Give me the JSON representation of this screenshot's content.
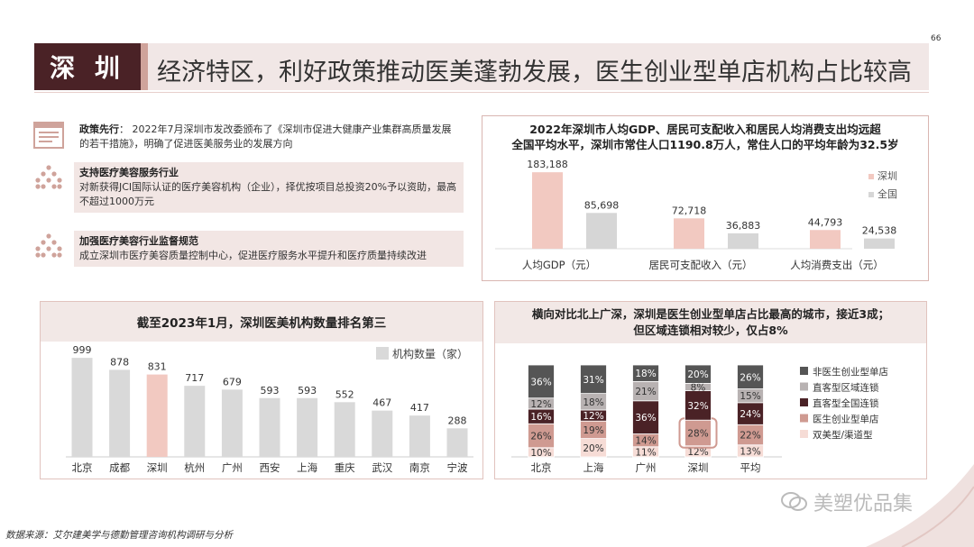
{
  "page_number": "66",
  "header": {
    "badge": "深 圳",
    "title": "经济特区，利好政策推动医美蓬勃发展，医生创业型单店机构占比较高"
  },
  "policies": [
    {
      "icon": "document-icon",
      "heading": "政策先行",
      "sep": "：",
      "text": "2022年7月深圳市发改委颁布了《深圳市促进大健康产业集群高质量发展的若干措施》，明确了促进医美服务业的发展方向"
    },
    {
      "icon": "dot-triangle-icon",
      "heading": "支持医疗美容服务行业",
      "sep": "",
      "text": "对新获得JCI国际认证的医疗美容机构（企业），择优按项目总投资20%予以资助，最高不超过1000万元"
    },
    {
      "icon": "dot-triangle-icon",
      "heading": "加强医疗美容行业监督规范",
      "sep": "",
      "text": "成立深圳市医疗美容质量控制中心，促进医疗服务水平提升和医疗质量持续改进"
    }
  ],
  "colors": {
    "dark": "#4a2226",
    "pink": "#f2c9c1",
    "grey": "#d6d6d6",
    "rose": "#cfa39b"
  },
  "chart_data": [
    {
      "type": "bar",
      "title": "2022年深圳市人均GDP、居民可支配收入和居民人均消费支出均远超全国平均水平，深圳市常住人口1190.8万人，常住人口的平均年龄为32.5岁",
      "title_lines": [
        "2022年深圳市人均GDP、居民可支配收入和居民人均消费支出均远超",
        "全国平均水平，深圳市常住人口1190.8万人，常住人口的平均年龄为32.5岁"
      ],
      "categories": [
        "人均GDP（元）",
        "居民可支配收入（元）",
        "人均消费支出（元）"
      ],
      "series": [
        {
          "name": "深圳",
          "color": "#f2c9c1",
          "values": [
            183188,
            72718,
            44793
          ],
          "labels": [
            "183,188",
            "72,718",
            "44,793"
          ]
        },
        {
          "name": "全国",
          "color": "#d6d6d6",
          "values": [
            85698,
            36883,
            24538
          ],
          "labels": [
            "85,698",
            "36,883",
            "24,538"
          ]
        }
      ],
      "legend": "right",
      "ylim": [
        0,
        190000
      ]
    },
    {
      "type": "bar",
      "title": "截至2023年1月，深圳医美机构数量排名第三",
      "categories": [
        "北京",
        "成都",
        "深圳",
        "杭州",
        "广州",
        "西安",
        "上海",
        "重庆",
        "武汉",
        "南京",
        "宁波"
      ],
      "series": [
        {
          "name": "机构数量（家）",
          "values": [
            999,
            878,
            831,
            717,
            679,
            593,
            593,
            552,
            467,
            417,
            288
          ]
        }
      ],
      "highlight": "深圳",
      "legend": "top-right",
      "ylim": [
        0,
        1000
      ]
    },
    {
      "type": "bar",
      "stacked": true,
      "title": "横向对比北上广深，深圳是医生创业型单店占比最高的城市，接近3成；但区域连锁相对较少，仅占8%",
      "title_lines": [
        "横向对比北上广深，深圳是医生创业型单店占比最高的城市，接近3成；",
        "但区域连锁相对较少，仅占8%"
      ],
      "categories": [
        "北京",
        "上海",
        "广州",
        "深圳",
        "平均"
      ],
      "series": [
        {
          "name": "双美型/渠道型",
          "color": "#f6dcd6",
          "values": [
            10,
            20,
            11,
            12,
            13
          ]
        },
        {
          "name": "医生创业型单店",
          "color": "#cf9a91",
          "values": [
            26,
            19,
            14,
            28,
            22
          ]
        },
        {
          "name": "直客型全国连锁",
          "color": "#4a2226",
          "values": [
            16,
            12,
            36,
            32,
            24
          ]
        },
        {
          "name": "直客型区域连锁",
          "color": "#b8b2b2",
          "values": [
            12,
            18,
            21,
            8,
            15
          ]
        },
        {
          "name": "非医生创业型单店",
          "color": "#555555",
          "values": [
            36,
            31,
            18,
            20,
            26
          ]
        }
      ],
      "highlight": {
        "category": "深圳",
        "series": "医生创业型单店"
      },
      "legend": "right",
      "ylim": [
        0,
        100
      ]
    }
  ],
  "source": "数据来源：艾尔建美学与德勤管理咨询机构调研与分析",
  "watermark": "美塑优品集"
}
